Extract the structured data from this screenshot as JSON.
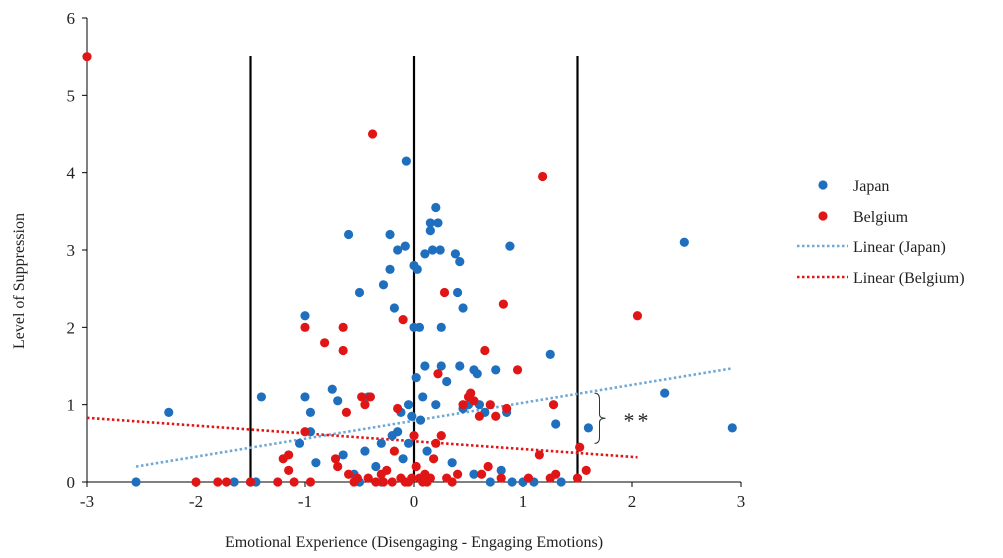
{
  "chart_data": {
    "type": "scatter",
    "xlabel": "Emotional Experience (Disengaging - Engaging Emotions)",
    "ylabel": "Level of Suppression",
    "xlim": [
      -3,
      3
    ],
    "ylim": [
      0,
      6
    ],
    "x_ticks": [
      "-3",
      "-2",
      "-1",
      "0",
      "1",
      "2",
      "3"
    ],
    "y_ticks": [
      "0",
      "1",
      "2",
      "3",
      "4",
      "5",
      "6"
    ],
    "vertical_reference_lines": [
      -1.5,
      0,
      1.5
    ],
    "annotation": {
      "text": "**",
      "bracket_y_range": [
        0.5,
        1.15
      ],
      "x": 1.75
    },
    "legend": {
      "position": "right",
      "entries": [
        "Japan",
        "Belgium",
        "Linear (Japan)",
        "Linear (Belgium)"
      ]
    },
    "colors": {
      "japan": "#1f6fbf",
      "belgium": "#e01616",
      "japan_trend": "#6fa8d6",
      "belgium_trend": "#e01616"
    },
    "series": [
      {
        "name": "Japan",
        "points": [
          [
            -2.55,
            0
          ],
          [
            -2.25,
            0.9
          ],
          [
            -1.65,
            0
          ],
          [
            -1.5,
            0
          ],
          [
            -1.45,
            0
          ],
          [
            -1.4,
            1.1
          ],
          [
            -1.05,
            0.5
          ],
          [
            -1.0,
            2.15
          ],
          [
            -1.0,
            1.1
          ],
          [
            -0.95,
            0.9
          ],
          [
            -0.95,
            0.65
          ],
          [
            -0.9,
            0.25
          ],
          [
            -0.75,
            1.2
          ],
          [
            -0.7,
            1.05
          ],
          [
            -0.65,
            0.35
          ],
          [
            -0.6,
            3.2
          ],
          [
            -0.55,
            0.1
          ],
          [
            -0.5,
            2.45
          ],
          [
            -0.5,
            0
          ],
          [
            -0.45,
            0.4
          ],
          [
            -0.42,
            1.1
          ],
          [
            -0.35,
            0.2
          ],
          [
            -0.3,
            0.5
          ],
          [
            -0.3,
            0
          ],
          [
            -0.28,
            2.55
          ],
          [
            -0.22,
            3.2
          ],
          [
            -0.22,
            2.75
          ],
          [
            -0.2,
            0.6
          ],
          [
            -0.18,
            2.25
          ],
          [
            -0.15,
            3.0
          ],
          [
            -0.15,
            0.65
          ],
          [
            -0.12,
            0.9
          ],
          [
            -0.1,
            0.3
          ],
          [
            -0.08,
            3.05
          ],
          [
            -0.07,
            4.15
          ],
          [
            -0.05,
            1.0
          ],
          [
            -0.05,
            0.5
          ],
          [
            -0.02,
            0.85
          ],
          [
            0,
            2.0
          ],
          [
            0,
            2.8
          ],
          [
            0.02,
            1.35
          ],
          [
            0.03,
            2.75
          ],
          [
            0.05,
            2.0
          ],
          [
            0.06,
            0.8
          ],
          [
            0.08,
            1.1
          ],
          [
            0.1,
            2.95
          ],
          [
            0.1,
            1.5
          ],
          [
            0.12,
            0.4
          ],
          [
            0.15,
            3.25
          ],
          [
            0.15,
            3.35
          ],
          [
            0.17,
            3.0
          ],
          [
            0.2,
            3.55
          ],
          [
            0.2,
            1.0
          ],
          [
            0.22,
            3.35
          ],
          [
            0.24,
            3.0
          ],
          [
            0.25,
            1.5
          ],
          [
            0.25,
            2.0
          ],
          [
            0.3,
            1.3
          ],
          [
            0.35,
            0.25
          ],
          [
            0.38,
            2.95
          ],
          [
            0.4,
            2.45
          ],
          [
            0.42,
            2.85
          ],
          [
            0.42,
            1.5
          ],
          [
            0.45,
            2.25
          ],
          [
            0.45,
            0.95
          ],
          [
            0.5,
            1.0
          ],
          [
            0.55,
            0.1
          ],
          [
            0.55,
            1.45
          ],
          [
            0.58,
            1.4
          ],
          [
            0.6,
            1.0
          ],
          [
            0.65,
            0.9
          ],
          [
            0.7,
            0
          ],
          [
            0.75,
            1.45
          ],
          [
            0.8,
            0.15
          ],
          [
            0.85,
            0.9
          ],
          [
            0.88,
            3.05
          ],
          [
            0.9,
            0
          ],
          [
            1.0,
            0
          ],
          [
            1.1,
            0
          ],
          [
            1.25,
            1.65
          ],
          [
            1.3,
            0.75
          ],
          [
            1.35,
            0
          ],
          [
            1.6,
            0.7
          ],
          [
            2.3,
            1.15
          ],
          [
            2.48,
            3.1
          ],
          [
            2.92,
            0.7
          ]
        ],
        "trendline": {
          "x": [
            -2.55,
            2.92
          ],
          "y": [
            0.2,
            1.47
          ]
        }
      },
      {
        "name": "Belgium",
        "points": [
          [
            -3.0,
            5.5
          ],
          [
            -2.0,
            0
          ],
          [
            -1.8,
            0
          ],
          [
            -1.72,
            0
          ],
          [
            -1.5,
            0
          ],
          [
            -1.25,
            0
          ],
          [
            -1.2,
            0.3
          ],
          [
            -1.15,
            0.35
          ],
          [
            -1.15,
            0.15
          ],
          [
            -1.1,
            0
          ],
          [
            -1.0,
            2.0
          ],
          [
            -1.0,
            0.65
          ],
          [
            -0.95,
            0
          ],
          [
            -0.82,
            1.8
          ],
          [
            -0.72,
            0.3
          ],
          [
            -0.7,
            0.2
          ],
          [
            -0.65,
            2.0
          ],
          [
            -0.65,
            1.7
          ],
          [
            -0.62,
            0.9
          ],
          [
            -0.6,
            0.1
          ],
          [
            -0.55,
            0
          ],
          [
            -0.52,
            0.05
          ],
          [
            -0.48,
            1.1
          ],
          [
            -0.45,
            1.0
          ],
          [
            -0.42,
            0.05
          ],
          [
            -0.4,
            1.1
          ],
          [
            -0.38,
            4.5
          ],
          [
            -0.35,
            0
          ],
          [
            -0.3,
            0.1
          ],
          [
            -0.28,
            0
          ],
          [
            -0.25,
            0.15
          ],
          [
            -0.2,
            0
          ],
          [
            -0.18,
            0.4
          ],
          [
            -0.15,
            0.95
          ],
          [
            -0.12,
            0.05
          ],
          [
            -0.1,
            2.1
          ],
          [
            -0.08,
            0
          ],
          [
            -0.05,
            0
          ],
          [
            -0.02,
            0.05
          ],
          [
            0,
            0.6
          ],
          [
            0.02,
            0.2
          ],
          [
            0.05,
            0.05
          ],
          [
            0.08,
            0
          ],
          [
            0.1,
            0.1
          ],
          [
            0.12,
            0
          ],
          [
            0.15,
            0.05
          ],
          [
            0.18,
            0.3
          ],
          [
            0.2,
            0.5
          ],
          [
            0.22,
            1.4
          ],
          [
            0.25,
            0.6
          ],
          [
            0.28,
            2.45
          ],
          [
            0.3,
            0.05
          ],
          [
            0.35,
            0
          ],
          [
            0.4,
            0.1
          ],
          [
            0.45,
            1.0
          ],
          [
            0.5,
            1.1
          ],
          [
            0.52,
            1.15
          ],
          [
            0.55,
            1.05
          ],
          [
            0.6,
            0.85
          ],
          [
            0.62,
            0.1
          ],
          [
            0.65,
            1.7
          ],
          [
            0.68,
            0.2
          ],
          [
            0.7,
            1.0
          ],
          [
            0.75,
            0.85
          ],
          [
            0.8,
            0.05
          ],
          [
            0.82,
            2.3
          ],
          [
            0.85,
            0.95
          ],
          [
            0.95,
            1.45
          ],
          [
            1.05,
            0.05
          ],
          [
            1.15,
            0.35
          ],
          [
            1.18,
            3.95
          ],
          [
            1.25,
            0.05
          ],
          [
            1.28,
            1.0
          ],
          [
            1.3,
            0.1
          ],
          [
            1.5,
            0.05
          ],
          [
            1.52,
            0.45
          ],
          [
            1.58,
            0.15
          ],
          [
            2.05,
            2.15
          ]
        ],
        "trendline": {
          "x": [
            -3.0,
            2.05
          ],
          "y": [
            0.83,
            0.32
          ]
        }
      }
    ]
  }
}
